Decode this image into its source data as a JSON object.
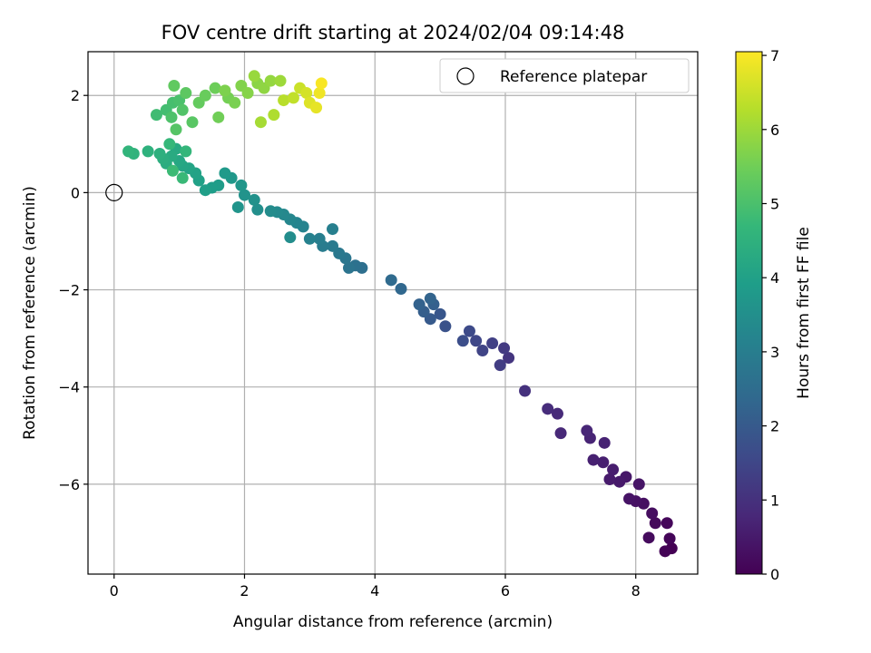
{
  "chart_data": {
    "type": "scatter",
    "title": "FOV centre drift starting at 2024/02/04 09:14:48",
    "xlabel": "Angular distance from reference (arcmin)",
    "ylabel": "Rotation from reference (arcmin)",
    "xlim": [
      -0.4,
      8.95
    ],
    "ylim": [
      -7.85,
      2.9
    ],
    "xticks": [
      0,
      2,
      4,
      6,
      8
    ],
    "yticks": [
      -6,
      -4,
      -2,
      0,
      2
    ],
    "xtick_labels": [
      "0",
      "2",
      "4",
      "6",
      "8"
    ],
    "ytick_labels": [
      "−6",
      "−4",
      "−2",
      "0",
      "2"
    ],
    "grid": true,
    "legend": {
      "position": "top-right",
      "entries": [
        "Reference platepar"
      ]
    },
    "reference_point": {
      "x": 0,
      "y": 0,
      "label": "Reference platepar"
    },
    "colorbar": {
      "label": "Hours from first FF file",
      "range": [
        0,
        7.05
      ],
      "ticks": [
        0,
        1,
        2,
        3,
        4,
        5,
        6,
        7
      ],
      "tick_labels": [
        "0",
        "1",
        "2",
        "3",
        "4",
        "5",
        "6",
        "7"
      ],
      "colormap": "viridis",
      "colormap_stops": [
        "#440154",
        "#482878",
        "#3e4989",
        "#31688e",
        "#26828e",
        "#1f9e89",
        "#35b779",
        "#6ece58",
        "#b5de2b",
        "#fde725"
      ]
    },
    "points": [
      [
        8.55,
        -7.32,
        0.0
      ],
      [
        8.45,
        -7.38,
        0.04
      ],
      [
        8.52,
        -7.12,
        0.08
      ],
      [
        8.48,
        -6.8,
        0.12
      ],
      [
        8.3,
        -6.8,
        0.16
      ],
      [
        8.2,
        -7.1,
        0.2
      ],
      [
        8.25,
        -6.6,
        0.24
      ],
      [
        8.12,
        -6.4,
        0.28
      ],
      [
        8.0,
        -6.35,
        0.32
      ],
      [
        7.9,
        -6.3,
        0.36
      ],
      [
        8.05,
        -6.0,
        0.4
      ],
      [
        7.85,
        -5.85,
        0.44
      ],
      [
        7.75,
        -5.95,
        0.48
      ],
      [
        7.6,
        -5.9,
        0.52
      ],
      [
        7.65,
        -5.7,
        0.56
      ],
      [
        7.5,
        -5.55,
        0.6
      ],
      [
        7.35,
        -5.5,
        0.64
      ],
      [
        7.52,
        -5.15,
        0.68
      ],
      [
        7.3,
        -5.05,
        0.72
      ],
      [
        7.25,
        -4.9,
        0.76
      ],
      [
        6.85,
        -4.95,
        0.8
      ],
      [
        6.8,
        -4.55,
        0.85
      ],
      [
        6.65,
        -4.45,
        0.9
      ],
      [
        6.3,
        -4.08,
        1.0
      ],
      [
        6.05,
        -3.4,
        1.1
      ],
      [
        5.98,
        -3.2,
        1.2
      ],
      [
        5.92,
        -3.55,
        1.28
      ],
      [
        5.8,
        -3.1,
        1.36
      ],
      [
        5.65,
        -3.25,
        1.44
      ],
      [
        5.55,
        -3.05,
        1.52
      ],
      [
        5.45,
        -2.85,
        1.6
      ],
      [
        5.35,
        -3.05,
        1.7
      ],
      [
        5.08,
        -2.75,
        1.8
      ],
      [
        5.0,
        -2.5,
        1.9
      ],
      [
        4.85,
        -2.6,
        2.0
      ],
      [
        4.75,
        -2.45,
        2.1
      ],
      [
        4.9,
        -2.3,
        2.15
      ],
      [
        4.68,
        -2.3,
        2.2
      ],
      [
        4.85,
        -2.18,
        2.25
      ],
      [
        4.4,
        -1.98,
        2.35
      ],
      [
        4.25,
        -1.8,
        2.45
      ],
      [
        3.8,
        -1.55,
        2.55
      ],
      [
        3.7,
        -1.5,
        2.62
      ],
      [
        3.6,
        -1.55,
        2.7
      ],
      [
        3.55,
        -1.35,
        2.78
      ],
      [
        3.45,
        -1.25,
        2.84
      ],
      [
        3.35,
        -1.1,
        2.9
      ],
      [
        3.2,
        -1.1,
        2.95
      ],
      [
        3.15,
        -0.95,
        3.0
      ],
      [
        3.35,
        -0.75,
        3.05
      ],
      [
        3.0,
        -0.95,
        3.1
      ],
      [
        2.9,
        -0.7,
        3.15
      ],
      [
        2.8,
        -0.62,
        3.2
      ],
      [
        2.7,
        -0.55,
        3.25
      ],
      [
        2.6,
        -0.45,
        3.3
      ],
      [
        2.5,
        -0.4,
        3.35
      ],
      [
        2.4,
        -0.38,
        3.4
      ],
      [
        2.7,
        -0.92,
        3.45
      ],
      [
        2.2,
        -0.35,
        3.5
      ],
      [
        2.15,
        -0.15,
        3.55
      ],
      [
        2.0,
        -0.05,
        3.6
      ],
      [
        1.9,
        -0.3,
        3.65
      ],
      [
        1.95,
        0.15,
        3.7
      ],
      [
        1.8,
        0.3,
        3.75
      ],
      [
        1.7,
        0.4,
        3.8
      ],
      [
        1.6,
        0.15,
        3.85
      ],
      [
        1.5,
        0.1,
        3.9
      ],
      [
        1.4,
        0.05,
        3.95
      ],
      [
        1.3,
        0.25,
        4.0
      ],
      [
        1.25,
        0.4,
        4.05
      ],
      [
        1.15,
        0.5,
        4.1
      ],
      [
        1.05,
        0.55,
        4.15
      ],
      [
        1.0,
        0.65,
        4.2
      ],
      [
        0.95,
        0.9,
        4.25
      ],
      [
        0.88,
        0.75,
        4.3
      ],
      [
        0.8,
        0.6,
        4.35
      ],
      [
        0.75,
        0.7,
        4.4
      ],
      [
        0.7,
        0.8,
        4.45
      ],
      [
        0.52,
        0.85,
        4.5
      ],
      [
        0.3,
        0.8,
        4.55
      ],
      [
        0.22,
        0.85,
        4.6
      ],
      [
        1.1,
        0.85,
        4.65
      ],
      [
        0.85,
        1.0,
        4.7
      ],
      [
        1.05,
        0.3,
        4.75
      ],
      [
        0.9,
        0.45,
        4.8
      ],
      [
        0.65,
        1.6,
        4.85
      ],
      [
        0.8,
        1.7,
        4.9
      ],
      [
        0.9,
        1.85,
        4.95
      ],
      [
        1.0,
        1.9,
        5.0
      ],
      [
        0.88,
        1.55,
        5.05
      ],
      [
        1.05,
        1.7,
        5.1
      ],
      [
        0.95,
        1.3,
        5.15
      ],
      [
        1.2,
        1.45,
        5.2
      ],
      [
        1.1,
        2.05,
        5.25
      ],
      [
        0.92,
        2.2,
        5.3
      ],
      [
        1.3,
        1.85,
        5.35
      ],
      [
        1.4,
        2.0,
        5.4
      ],
      [
        1.55,
        2.15,
        5.45
      ],
      [
        1.6,
        1.55,
        5.5
      ],
      [
        1.75,
        1.95,
        5.55
      ],
      [
        1.85,
        1.85,
        5.6
      ],
      [
        1.7,
        2.1,
        5.65
      ],
      [
        1.95,
        2.2,
        5.7
      ],
      [
        2.05,
        2.05,
        5.75
      ],
      [
        2.2,
        2.25,
        5.8
      ],
      [
        2.3,
        2.15,
        5.85
      ],
      [
        2.4,
        2.3,
        5.9
      ],
      [
        2.15,
        2.4,
        5.95
      ],
      [
        2.55,
        2.3,
        6.0
      ],
      [
        2.25,
        1.45,
        6.1
      ],
      [
        2.45,
        1.6,
        6.2
      ],
      [
        2.6,
        1.9,
        6.3
      ],
      [
        2.75,
        1.95,
        6.4
      ],
      [
        2.85,
        2.15,
        6.5
      ],
      [
        2.95,
        2.05,
        6.6
      ],
      [
        3.0,
        1.85,
        6.7
      ],
      [
        3.1,
        1.75,
        6.8
      ],
      [
        3.15,
        2.05,
        6.9
      ],
      [
        3.18,
        2.25,
        7.0
      ]
    ]
  }
}
